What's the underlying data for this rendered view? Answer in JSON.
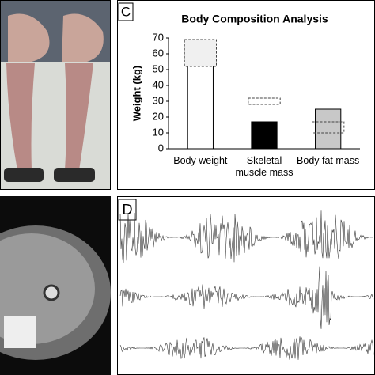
{
  "panels": {
    "c_label": "C",
    "d_label": "D"
  },
  "chart_data": {
    "type": "bar",
    "title": "Body Composition Analysis",
    "ylabel": "Weight (kg)",
    "categories": [
      "Body weight",
      "Skeletal muscle mass",
      "Body fat mass"
    ],
    "values": [
      58,
      17,
      25
    ],
    "colors": [
      "#ffffff",
      "#000000",
      "#c8c8c8"
    ],
    "reference_ranges": [
      [
        52,
        69
      ],
      [
        28,
        32
      ],
      [
        10,
        17
      ]
    ],
    "ylim": [
      0,
      70
    ],
    "yticks": [
      0,
      10,
      20,
      30,
      40,
      50,
      60,
      70
    ],
    "grid": false
  }
}
